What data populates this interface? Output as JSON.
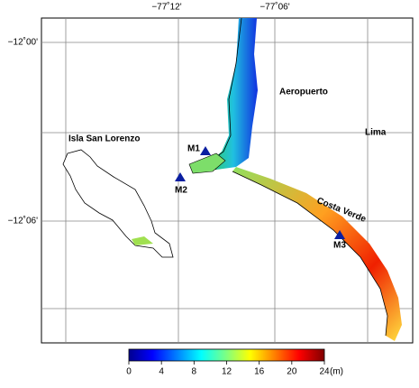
{
  "map": {
    "lon_labels": [
      "−77˚12'",
      "−77˚06'"
    ],
    "lat_labels": [
      "−12˚00'",
      "−12˚06'"
    ],
    "places": [
      "Aeropuerto",
      "Isla San Lorenzo",
      "Lima",
      "Costa Verde"
    ],
    "stations": [
      "M1",
      "M2",
      "M3"
    ]
  },
  "colorbar": {
    "lim": [
      0,
      24
    ],
    "ticks": [
      0,
      4,
      8,
      12,
      16,
      20,
      24
    ],
    "unit": "(m)"
  }
}
